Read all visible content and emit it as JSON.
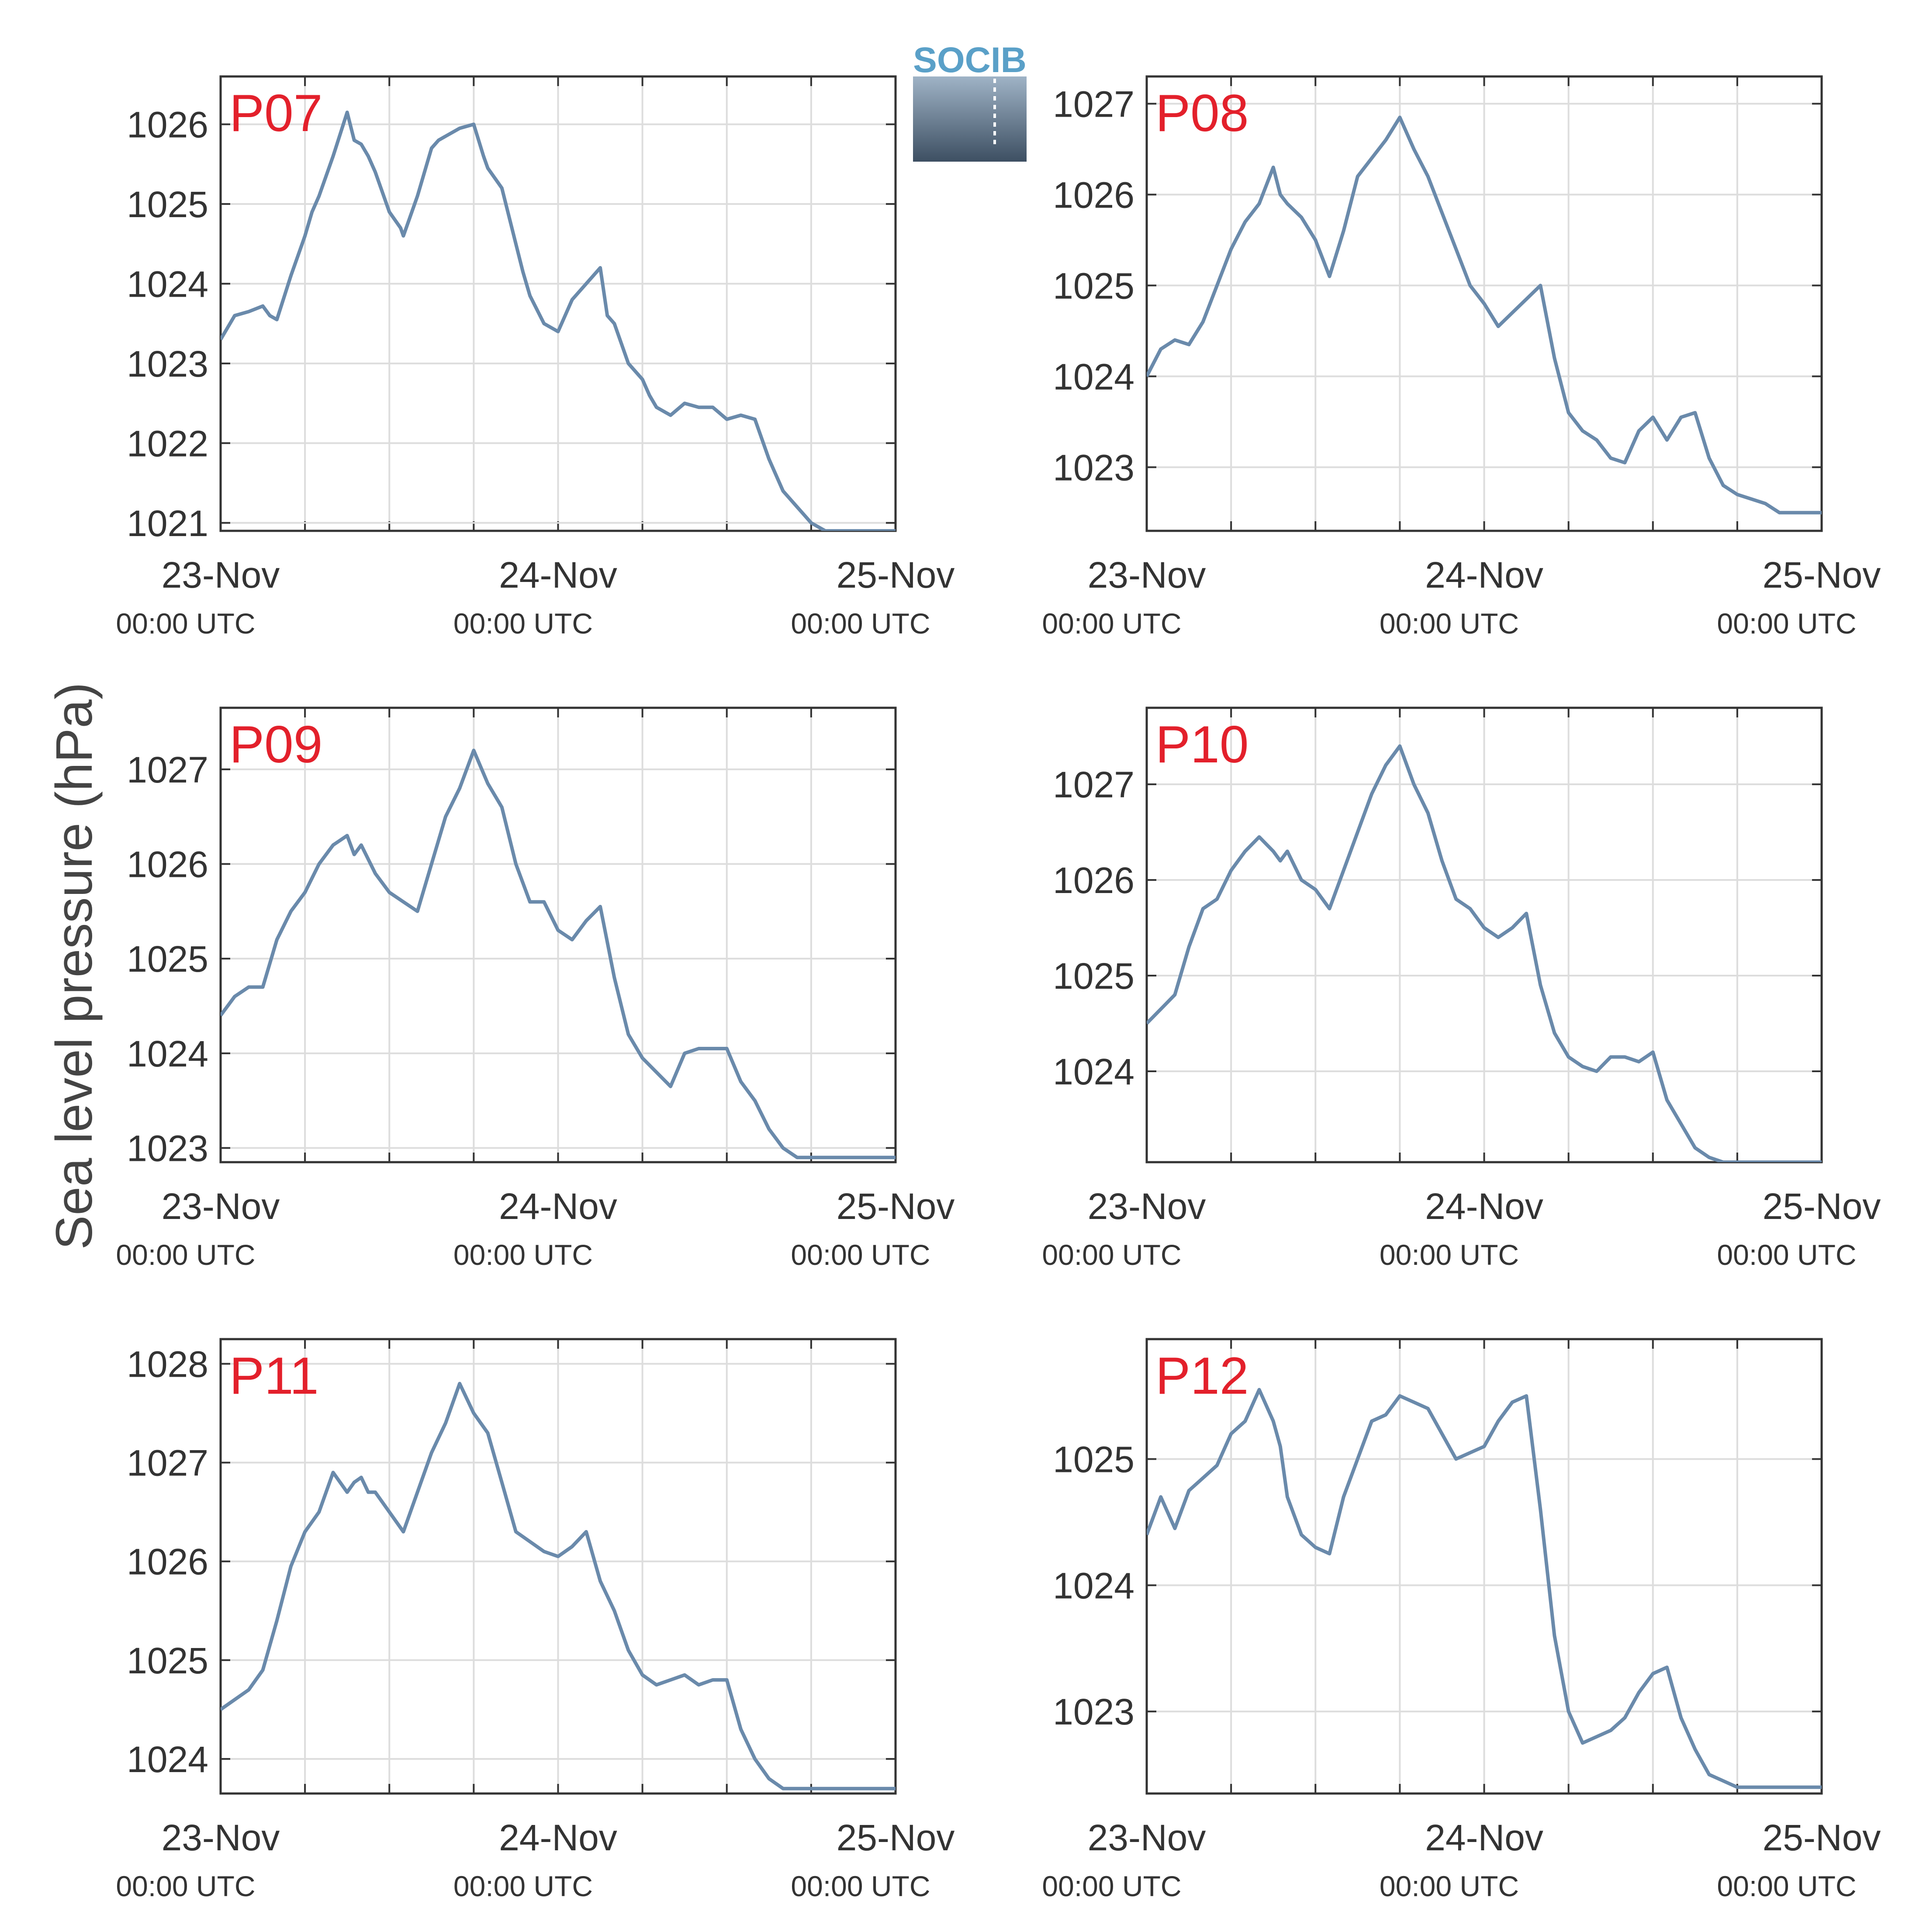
{
  "logo_text": "SOCIB",
  "colors": {
    "line": "#6a8aab",
    "label": "#e3202b",
    "axis": "#333333",
    "grid": "#dddddd",
    "logo": "#5aa0c8"
  },
  "chart_data": {
    "type": "line",
    "ylabel": "Sea level pressure (hPa)",
    "x_ticks": [
      {
        "date": "23-Nov",
        "time": "00:00 UTC"
      },
      {
        "date": "24-Nov",
        "time": "00:00 UTC"
      },
      {
        "date": "25-Nov",
        "time": "00:00 UTC"
      }
    ],
    "xlim_hours": [
      0,
      48
    ],
    "grid": true,
    "panels": [
      {
        "name": "P07",
        "ylim": [
          1020.9,
          1026.6
        ],
        "yticks": [
          1021,
          1022,
          1023,
          1024,
          1025,
          1026
        ],
        "series": {
          "x_hours": [
            0,
            1,
            2,
            3,
            3.5,
            4,
            5,
            6,
            6.5,
            7,
            8,
            9,
            9.5,
            10,
            10.5,
            11,
            12,
            12.8,
            13,
            14,
            15,
            15.5,
            16,
            17,
            18,
            18.7,
            19,
            20,
            21,
            21.5,
            22,
            23,
            24,
            25,
            26,
            27,
            27.5,
            28,
            29,
            30,
            30.5,
            31,
            32,
            33,
            34,
            35,
            36,
            37,
            38,
            39,
            40,
            41,
            41.5,
            42,
            43,
            44,
            45,
            46,
            47,
            48
          ],
          "y": [
            1023.3,
            1023.6,
            1023.65,
            1023.72,
            1023.6,
            1023.55,
            1024.1,
            1024.6,
            1024.9,
            1025.1,
            1025.6,
            1026.15,
            1025.8,
            1025.75,
            1025.6,
            1025.4,
            1024.9,
            1024.7,
            1024.6,
            1025.1,
            1025.7,
            1025.8,
            1025.85,
            1025.95,
            1026.0,
            1025.6,
            1025.45,
            1025.2,
            1024.5,
            1024.15,
            1023.85,
            1023.5,
            1023.4,
            1023.8,
            1024.0,
            1024.2,
            1023.6,
            1023.5,
            1023.0,
            1022.8,
            1022.6,
            1022.45,
            1022.35,
            1022.5,
            1022.45,
            1022.45,
            1022.3,
            1022.35,
            1022.3,
            1021.8,
            1021.4,
            1021.2,
            1021.1,
            1021.0,
            1020.9,
            1020.9,
            1020.9,
            1020.9,
            1020.9,
            1020.9
          ]
        }
      },
      {
        "name": "P08",
        "ylim": [
          1022.3,
          1027.3
        ],
        "yticks": [
          1023,
          1024,
          1025,
          1026,
          1027
        ],
        "series": {
          "x_hours": [
            0,
            1,
            2,
            3,
            4,
            5,
            6,
            7,
            8,
            9,
            9.5,
            10,
            11,
            12,
            13,
            14,
            15,
            16,
            17,
            18,
            19,
            20,
            21,
            22,
            23,
            24,
            25,
            26,
            27,
            28,
            29,
            30,
            31,
            32,
            33,
            34,
            35,
            36,
            37,
            38,
            39,
            40,
            41,
            42,
            43,
            44,
            45,
            46,
            47,
            48
          ],
          "y": [
            1024.0,
            1024.3,
            1024.4,
            1024.35,
            1024.6,
            1025.0,
            1025.4,
            1025.7,
            1025.9,
            1026.3,
            1026.0,
            1025.9,
            1025.75,
            1025.5,
            1025.1,
            1025.6,
            1026.2,
            1026.4,
            1026.6,
            1026.85,
            1026.5,
            1026.2,
            1025.8,
            1025.4,
            1025.0,
            1024.8,
            1024.55,
            1024.7,
            1024.85,
            1025.0,
            1024.2,
            1023.6,
            1023.4,
            1023.3,
            1023.1,
            1023.05,
            1023.4,
            1023.55,
            1023.3,
            1023.55,
            1023.6,
            1023.1,
            1022.8,
            1022.7,
            1022.65,
            1022.6,
            1022.5,
            1022.5,
            1022.5,
            1022.5
          ]
        }
      },
      {
        "name": "P09",
        "ylim": [
          1022.85,
          1027.65
        ],
        "yticks": [
          1023,
          1024,
          1025,
          1026,
          1027
        ],
        "series": {
          "x_hours": [
            0,
            1,
            2,
            3,
            4,
            5,
            6,
            7,
            8,
            9,
            9.5,
            10,
            11,
            12,
            13,
            14,
            15,
            16,
            17,
            18,
            19,
            20,
            21,
            22,
            23,
            24,
            25,
            26,
            27,
            28,
            29,
            30,
            31,
            32,
            33,
            34,
            35,
            36,
            37,
            38,
            39,
            40,
            41,
            42,
            43,
            44,
            45,
            46,
            47,
            48
          ],
          "y": [
            1024.4,
            1024.6,
            1024.7,
            1024.7,
            1025.2,
            1025.5,
            1025.7,
            1026.0,
            1026.2,
            1026.3,
            1026.1,
            1026.2,
            1025.9,
            1025.7,
            1025.6,
            1025.5,
            1026.0,
            1026.5,
            1026.8,
            1027.2,
            1026.85,
            1026.6,
            1026.0,
            1025.6,
            1025.6,
            1025.3,
            1025.2,
            1025.4,
            1025.55,
            1024.8,
            1024.2,
            1023.95,
            1023.8,
            1023.65,
            1024.0,
            1024.05,
            1024.05,
            1024.05,
            1023.7,
            1023.5,
            1023.2,
            1023.0,
            1022.9,
            1022.9,
            1022.9,
            1022.9,
            1022.9,
            1022.9,
            1022.9,
            1022.9
          ]
        }
      },
      {
        "name": "P10",
        "ylim": [
          1023.05,
          1027.8
        ],
        "yticks": [
          1024,
          1025,
          1026,
          1027
        ],
        "series": {
          "x_hours": [
            0,
            1,
            2,
            3,
            4,
            5,
            6,
            7,
            8,
            9,
            9.5,
            10,
            11,
            12,
            13,
            14,
            15,
            16,
            17,
            18,
            19,
            20,
            21,
            22,
            23,
            24,
            25,
            26,
            27,
            28,
            29,
            30,
            31,
            32,
            33,
            34,
            35,
            36,
            37,
            38,
            39,
            40,
            41,
            42,
            43,
            44,
            45,
            46,
            47,
            48
          ],
          "y": [
            1024.5,
            1024.65,
            1024.8,
            1025.3,
            1025.7,
            1025.8,
            1026.1,
            1026.3,
            1026.45,
            1026.3,
            1026.2,
            1026.3,
            1026.0,
            1025.9,
            1025.7,
            1026.1,
            1026.5,
            1026.9,
            1027.2,
            1027.4,
            1027.0,
            1026.7,
            1026.2,
            1025.8,
            1025.7,
            1025.5,
            1025.4,
            1025.5,
            1025.65,
            1024.9,
            1024.4,
            1024.15,
            1024.05,
            1024.0,
            1024.15,
            1024.15,
            1024.1,
            1024.2,
            1023.7,
            1023.45,
            1023.2,
            1023.1,
            1023.05,
            1023.05,
            1023.05,
            1023.05,
            1023.05,
            1023.05,
            1023.05,
            1023.05
          ]
        }
      },
      {
        "name": "P11",
        "ylim": [
          1023.65,
          1028.25
        ],
        "yticks": [
          1024,
          1025,
          1026,
          1027,
          1028
        ],
        "series": {
          "x_hours": [
            0,
            1,
            2,
            3,
            4,
            5,
            6,
            7,
            8,
            9,
            9.5,
            10,
            10.5,
            11,
            12,
            13,
            14,
            15,
            16,
            17,
            18,
            19,
            20,
            21,
            22,
            23,
            24,
            25,
            26,
            27,
            28,
            29,
            30,
            31,
            32,
            33,
            34,
            35,
            36,
            37,
            38,
            39,
            40,
            41,
            42,
            43,
            44,
            45,
            46,
            47,
            48
          ],
          "y": [
            1024.5,
            1024.6,
            1024.7,
            1024.9,
            1025.4,
            1025.95,
            1026.3,
            1026.5,
            1026.9,
            1026.7,
            1026.8,
            1026.85,
            1026.7,
            1026.7,
            1026.5,
            1026.3,
            1026.7,
            1027.1,
            1027.4,
            1027.8,
            1027.5,
            1027.3,
            1026.8,
            1026.3,
            1026.2,
            1026.1,
            1026.05,
            1026.15,
            1026.3,
            1025.8,
            1025.5,
            1025.1,
            1024.85,
            1024.75,
            1024.8,
            1024.85,
            1024.75,
            1024.8,
            1024.8,
            1024.3,
            1024.0,
            1023.8,
            1023.7,
            1023.7,
            1023.7,
            1023.7,
            1023.7,
            1023.7,
            1023.7,
            1023.7,
            1023.7
          ]
        }
      },
      {
        "name": "P12",
        "ylim": [
          1022.35,
          1025.95
        ],
        "yticks": [
          1023,
          1024,
          1025
        ],
        "series": {
          "x_hours": [
            0,
            1,
            2,
            3,
            4,
            5,
            6,
            7,
            8,
            9,
            9.5,
            10,
            11,
            12,
            13,
            14,
            15,
            16,
            17,
            18,
            19,
            20,
            21,
            22,
            23,
            24,
            25,
            26,
            27,
            28,
            29,
            30,
            31,
            32,
            33,
            34,
            35,
            36,
            37,
            38,
            39,
            40,
            41,
            42,
            43,
            44,
            45,
            46,
            47,
            48
          ],
          "y": [
            1024.4,
            1024.7,
            1024.45,
            1024.75,
            1024.85,
            1024.95,
            1025.2,
            1025.3,
            1025.55,
            1025.3,
            1025.1,
            1024.7,
            1024.4,
            1024.3,
            1024.25,
            1024.7,
            1025.0,
            1025.3,
            1025.35,
            1025.5,
            1025.45,
            1025.4,
            1025.2,
            1025.0,
            1025.05,
            1025.1,
            1025.3,
            1025.45,
            1025.5,
            1024.6,
            1023.6,
            1023.0,
            1022.75,
            1022.8,
            1022.85,
            1022.95,
            1023.15,
            1023.3,
            1023.35,
            1022.95,
            1022.7,
            1022.5,
            1022.45,
            1022.4,
            1022.4,
            1022.4,
            1022.4,
            1022.4,
            1022.4,
            1022.4
          ]
        }
      }
    ]
  }
}
